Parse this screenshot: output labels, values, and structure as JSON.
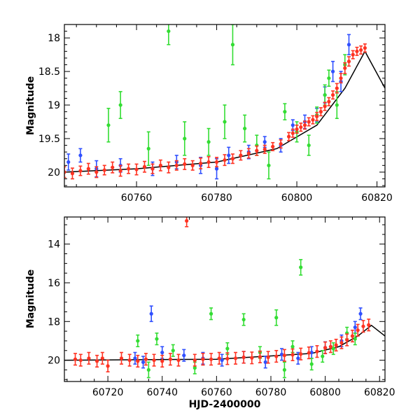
{
  "chart_data": [
    {
      "type": "scatter",
      "panel": "top",
      "xlabel": "",
      "ylabel": "Magnitude",
      "xlim": [
        60742,
        60822
      ],
      "ylim": [
        20.22,
        17.8
      ],
      "y_inverted": true,
      "xticks": [
        60760,
        60780,
        60800,
        60820
      ],
      "yticks": [
        18,
        18.5,
        19,
        19.5,
        20
      ],
      "yticklabels": [
        "18",
        "18.5",
        "19",
        "19.5",
        "20"
      ],
      "grid": false,
      "model": {
        "x": [
          60742,
          60760,
          60780,
          60795,
          60805,
          60812,
          60817,
          60822
        ],
        "y": [
          20.0,
          19.95,
          19.85,
          19.65,
          19.3,
          18.75,
          18.2,
          18.75
        ]
      },
      "series": [
        {
          "color": "#3050ff",
          "points": [
            [
              60743,
              19.85,
              0.12
            ],
            [
              60746,
              19.75,
              0.1
            ],
            [
              60750,
              19.95,
              0.12
            ],
            [
              60756,
              19.9,
              0.1
            ],
            [
              60764,
              19.95,
              0.1
            ],
            [
              60770,
              19.85,
              0.1
            ],
            [
              60776,
              19.9,
              0.12
            ],
            [
              60780,
              19.95,
              0.15
            ],
            [
              60783,
              19.75,
              0.12
            ],
            [
              60788,
              19.7,
              0.1
            ],
            [
              60792,
              19.55,
              0.08
            ],
            [
              60796,
              19.6,
              0.1
            ],
            [
              60799,
              19.3,
              0.08
            ],
            [
              60802,
              19.25,
              0.1
            ],
            [
              60805,
              19.15,
              0.1
            ],
            [
              60807,
              18.85,
              0.12
            ],
            [
              60809,
              18.5,
              0.15
            ],
            [
              60811,
              18.65,
              0.15
            ],
            [
              60813,
              18.1,
              0.15
            ]
          ]
        },
        {
          "color": "#33dd33",
          "points": [
            [
              60753,
              19.3,
              0.25
            ],
            [
              60756,
              19.0,
              0.2
            ],
            [
              60763,
              19.65,
              0.25
            ],
            [
              60768,
              17.9,
              0.2
            ],
            [
              60772,
              19.5,
              0.25
            ],
            [
              60778,
              19.55,
              0.2
            ],
            [
              60782,
              19.25,
              0.25
            ],
            [
              60784,
              18.1,
              0.3
            ],
            [
              60787,
              19.35,
              0.2
            ],
            [
              60790,
              19.6,
              0.15
            ],
            [
              60793,
              19.9,
              0.2
            ],
            [
              60797,
              19.1,
              0.12
            ],
            [
              60800,
              19.4,
              0.15
            ],
            [
              60803,
              19.6,
              0.15
            ],
            [
              60805,
              19.15,
              0.12
            ],
            [
              60807,
              18.85,
              0.15
            ],
            [
              60808,
              18.6,
              0.12
            ],
            [
              60810,
              19.0,
              0.2
            ],
            [
              60812,
              18.4,
              0.15
            ]
          ]
        },
        {
          "color": "#ff3322",
          "points": [
            [
              60742,
              20.0,
              0.08
            ],
            [
              60744,
              20.02,
              0.08
            ],
            [
              60746,
              19.98,
              0.07
            ],
            [
              60748,
              19.95,
              0.08
            ],
            [
              60750,
              20.0,
              0.08
            ],
            [
              60752,
              19.97,
              0.07
            ],
            [
              60754,
              19.93,
              0.08
            ],
            [
              60756,
              19.98,
              0.08
            ],
            [
              60758,
              19.95,
              0.07
            ],
            [
              60760,
              19.96,
              0.08
            ],
            [
              60762,
              19.92,
              0.08
            ],
            [
              60764,
              19.95,
              0.07
            ],
            [
              60766,
              19.9,
              0.08
            ],
            [
              60768,
              19.93,
              0.08
            ],
            [
              60770,
              19.9,
              0.07
            ],
            [
              60772,
              19.88,
              0.08
            ],
            [
              60774,
              19.9,
              0.07
            ],
            [
              60776,
              19.87,
              0.08
            ],
            [
              60778,
              19.85,
              0.08
            ],
            [
              60780,
              19.85,
              0.07
            ],
            [
              60782,
              19.82,
              0.08
            ],
            [
              60784,
              19.8,
              0.07
            ],
            [
              60786,
              19.75,
              0.07
            ],
            [
              60788,
              19.72,
              0.07
            ],
            [
              60790,
              19.68,
              0.07
            ],
            [
              60792,
              19.66,
              0.06
            ],
            [
              60794,
              19.62,
              0.06
            ],
            [
              60796,
              19.58,
              0.06
            ],
            [
              60798,
              19.47,
              0.06
            ],
            [
              60799,
              19.42,
              0.06
            ],
            [
              60800,
              19.36,
              0.06
            ],
            [
              60801,
              19.33,
              0.06
            ],
            [
              60802,
              19.3,
              0.06
            ],
            [
              60803,
              19.25,
              0.06
            ],
            [
              60804,
              19.22,
              0.06
            ],
            [
              60805,
              19.17,
              0.06
            ],
            [
              60806,
              19.1,
              0.06
            ],
            [
              60807,
              19.02,
              0.06
            ],
            [
              60808,
              18.95,
              0.06
            ],
            [
              60809,
              18.85,
              0.06
            ],
            [
              60810,
              18.75,
              0.07
            ],
            [
              60811,
              18.6,
              0.07
            ],
            [
              60812,
              18.45,
              0.08
            ],
            [
              60813,
              18.35,
              0.07
            ],
            [
              60814,
              18.25,
              0.06
            ],
            [
              60815,
              18.2,
              0.06
            ],
            [
              60816,
              18.18,
              0.06
            ],
            [
              60817,
              18.15,
              0.06
            ]
          ]
        }
      ]
    },
    {
      "type": "scatter",
      "panel": "bottom",
      "xlabel": "HJD-2400000",
      "ylabel": "Magnitude",
      "xlim": [
        60704,
        60822
      ],
      "ylim": [
        21.1,
        12.6
      ],
      "y_inverted": true,
      "xticks": [
        60720,
        60740,
        60760,
        60780,
        60800,
        60820
      ],
      "yticks": [
        14,
        16,
        18,
        20
      ],
      "yticklabels": [
        "14",
        "16",
        "18",
        "20"
      ],
      "grid": false,
      "model": {
        "x": [
          60704,
          60760,
          60795,
          60805,
          60812,
          60817,
          60822
        ],
        "y": [
          20.0,
          19.95,
          19.65,
          19.3,
          18.75,
          18.2,
          18.75
        ]
      },
      "series": [
        {
          "color": "#3050ff",
          "points": [
            [
              60730,
              19.9,
              0.3
            ],
            [
              60733,
              20.1,
              0.3
            ],
            [
              60736,
              17.6,
              0.4
            ],
            [
              60740,
              19.6,
              0.3
            ],
            [
              60748,
              19.75,
              0.3
            ],
            [
              60755,
              19.9,
              0.3
            ],
            [
              60762,
              20.0,
              0.3
            ],
            [
              60770,
              19.85,
              0.3
            ],
            [
              60778,
              20.1,
              0.3
            ],
            [
              60784,
              19.7,
              0.3
            ],
            [
              60790,
              19.9,
              0.3
            ],
            [
              60795,
              19.6,
              0.3
            ],
            [
              60800,
              19.35,
              0.3
            ],
            [
              60806,
              19.0,
              0.3
            ],
            [
              60811,
              18.3,
              0.3
            ],
            [
              60813,
              17.6,
              0.3
            ]
          ]
        },
        {
          "color": "#33dd33",
          "points": [
            [
              60731,
              19.0,
              0.3
            ],
            [
              60735,
              20.5,
              0.4
            ],
            [
              60738,
              18.9,
              0.3
            ],
            [
              60744,
              19.5,
              0.3
            ],
            [
              60752,
              20.4,
              0.3
            ],
            [
              60758,
              17.6,
              0.3
            ],
            [
              60764,
              19.4,
              0.3
            ],
            [
              60770,
              17.9,
              0.3
            ],
            [
              60776,
              19.6,
              0.3
            ],
            [
              60782,
              17.8,
              0.4
            ],
            [
              60785,
              20.5,
              0.4
            ],
            [
              60788,
              19.3,
              0.3
            ],
            [
              60791,
              15.2,
              0.4
            ],
            [
              60795,
              20.2,
              0.3
            ],
            [
              60799,
              19.8,
              0.3
            ],
            [
              60803,
              19.4,
              0.3
            ],
            [
              60808,
              18.6,
              0.3
            ],
            [
              60811,
              18.9,
              0.3
            ]
          ]
        },
        {
          "color": "#ff3322",
          "points": [
            [
              60708,
              19.95,
              0.3
            ],
            [
              60710,
              20.0,
              0.3
            ],
            [
              60713,
              19.9,
              0.3
            ],
            [
              60716,
              20.05,
              0.3
            ],
            [
              60718,
              19.9,
              0.3
            ],
            [
              60720,
              20.3,
              0.3
            ],
            [
              60725,
              19.9,
              0.3
            ],
            [
              60728,
              20.0,
              0.3
            ],
            [
              60731,
              20.05,
              0.3
            ],
            [
              60734,
              19.95,
              0.3
            ],
            [
              60737,
              20.0,
              0.3
            ],
            [
              60740,
              20.05,
              0.3
            ],
            [
              60743,
              19.95,
              0.3
            ],
            [
              60746,
              20.0,
              0.3
            ],
            [
              60749,
              12.8,
              0.3
            ],
            [
              60752,
              20.0,
              0.3
            ],
            [
              60755,
              19.95,
              0.3
            ],
            [
              60758,
              19.95,
              0.3
            ],
            [
              60761,
              19.9,
              0.3
            ],
            [
              60764,
              19.92,
              0.3
            ],
            [
              60767,
              19.9,
              0.3
            ],
            [
              60770,
              19.85,
              0.3
            ],
            [
              60773,
              19.88,
              0.3
            ],
            [
              60776,
              19.83,
              0.3
            ],
            [
              60779,
              19.85,
              0.3
            ],
            [
              60782,
              19.8,
              0.3
            ],
            [
              60785,
              19.75,
              0.3
            ],
            [
              60788,
              19.72,
              0.3
            ],
            [
              60791,
              19.68,
              0.3
            ],
            [
              60794,
              19.62,
              0.3
            ],
            [
              60797,
              19.55,
              0.3
            ],
            [
              60800,
              19.36,
              0.3
            ],
            [
              60802,
              19.3,
              0.3
            ],
            [
              60804,
              19.22,
              0.3
            ],
            [
              60806,
              19.1,
              0.3
            ],
            [
              60808,
              18.95,
              0.3
            ],
            [
              60810,
              18.75,
              0.3
            ],
            [
              60812,
              18.45,
              0.3
            ],
            [
              60814,
              18.25,
              0.3
            ],
            [
              60816,
              18.18,
              0.3
            ]
          ]
        }
      ]
    }
  ]
}
